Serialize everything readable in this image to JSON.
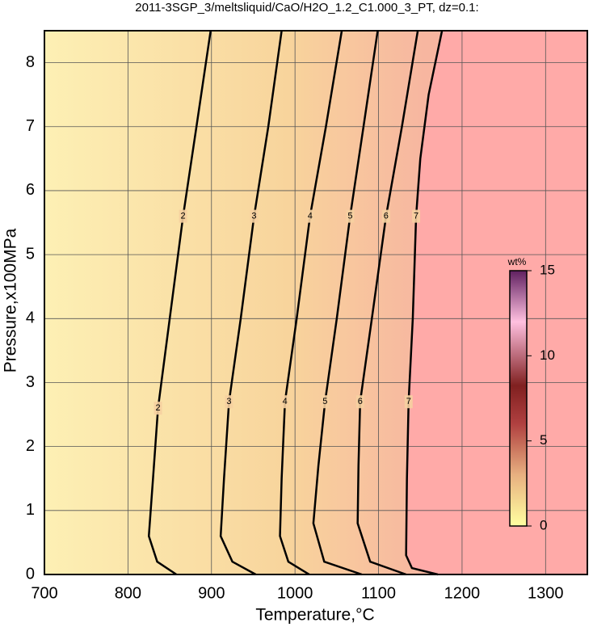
{
  "chart_data": {
    "type": "contour",
    "title": "2011-3SGP_3/meltsliquid/CaO/H2O_1.2_C1.000_3_PT, dz=0.1:",
    "x_label": "Temperature,°C",
    "y_label": "Pressure,x100MPa",
    "xlim": [
      700,
      1350
    ],
    "ylim": [
      0,
      8.5
    ],
    "xticks": [
      700,
      800,
      900,
      1000,
      1100,
      1200,
      1300
    ],
    "yticks": [
      0,
      1,
      2,
      3,
      4,
      5,
      6,
      7,
      8
    ],
    "grid": true,
    "series": [
      {
        "name": "2",
        "color": "#000000",
        "x": [
          858,
          835,
          825,
          830,
          836,
          850,
          866,
          882,
          899
        ],
        "y": [
          0,
          0.2,
          0.6,
          1.5,
          2.6,
          4,
          5.6,
          7,
          8.5
        ]
      },
      {
        "name": "3",
        "color": "#000000",
        "x": [
          953,
          925,
          911,
          915,
          921,
          935,
          951,
          968,
          984
        ],
        "y": [
          0,
          0.2,
          0.6,
          1.5,
          2.7,
          4,
          5.6,
          7,
          8.5
        ]
      },
      {
        "name": "4",
        "color": "#000000",
        "x": [
          1017,
          992,
          982,
          984,
          988,
          1002,
          1018,
          1037,
          1056
        ],
        "y": [
          0,
          0.2,
          0.6,
          1.5,
          2.7,
          4,
          5.6,
          7,
          8.5
        ]
      },
      {
        "name": "5",
        "color": "#000000",
        "x": [
          1080,
          1035,
          1022,
          1028,
          1036,
          1050,
          1066,
          1082,
          1099
        ],
        "y": [
          0,
          0.2,
          0.8,
          1.7,
          2.7,
          4,
          5.6,
          7,
          8.5
        ]
      },
      {
        "name": "6",
        "color": "#000000",
        "x": [
          1133,
          1090,
          1075,
          1076,
          1078,
          1092,
          1109,
          1128,
          1147
        ],
        "y": [
          0,
          0.2,
          0.8,
          1.7,
          2.7,
          4,
          5.6,
          7,
          8.5
        ]
      },
      {
        "name": "7",
        "color": "#000000",
        "x": [
          1171,
          1140,
          1133,
          1134,
          1136,
          1141,
          1145,
          1150,
          1160,
          1176
        ],
        "y": [
          0,
          0.1,
          0.3,
          1.5,
          2.7,
          4,
          5.6,
          6.5,
          7.5,
          8.5
        ]
      }
    ],
    "colorbar": {
      "label": "wt%",
      "lim": [
        0,
        15
      ],
      "ticks": [
        0,
        5,
        10,
        15
      ]
    }
  }
}
